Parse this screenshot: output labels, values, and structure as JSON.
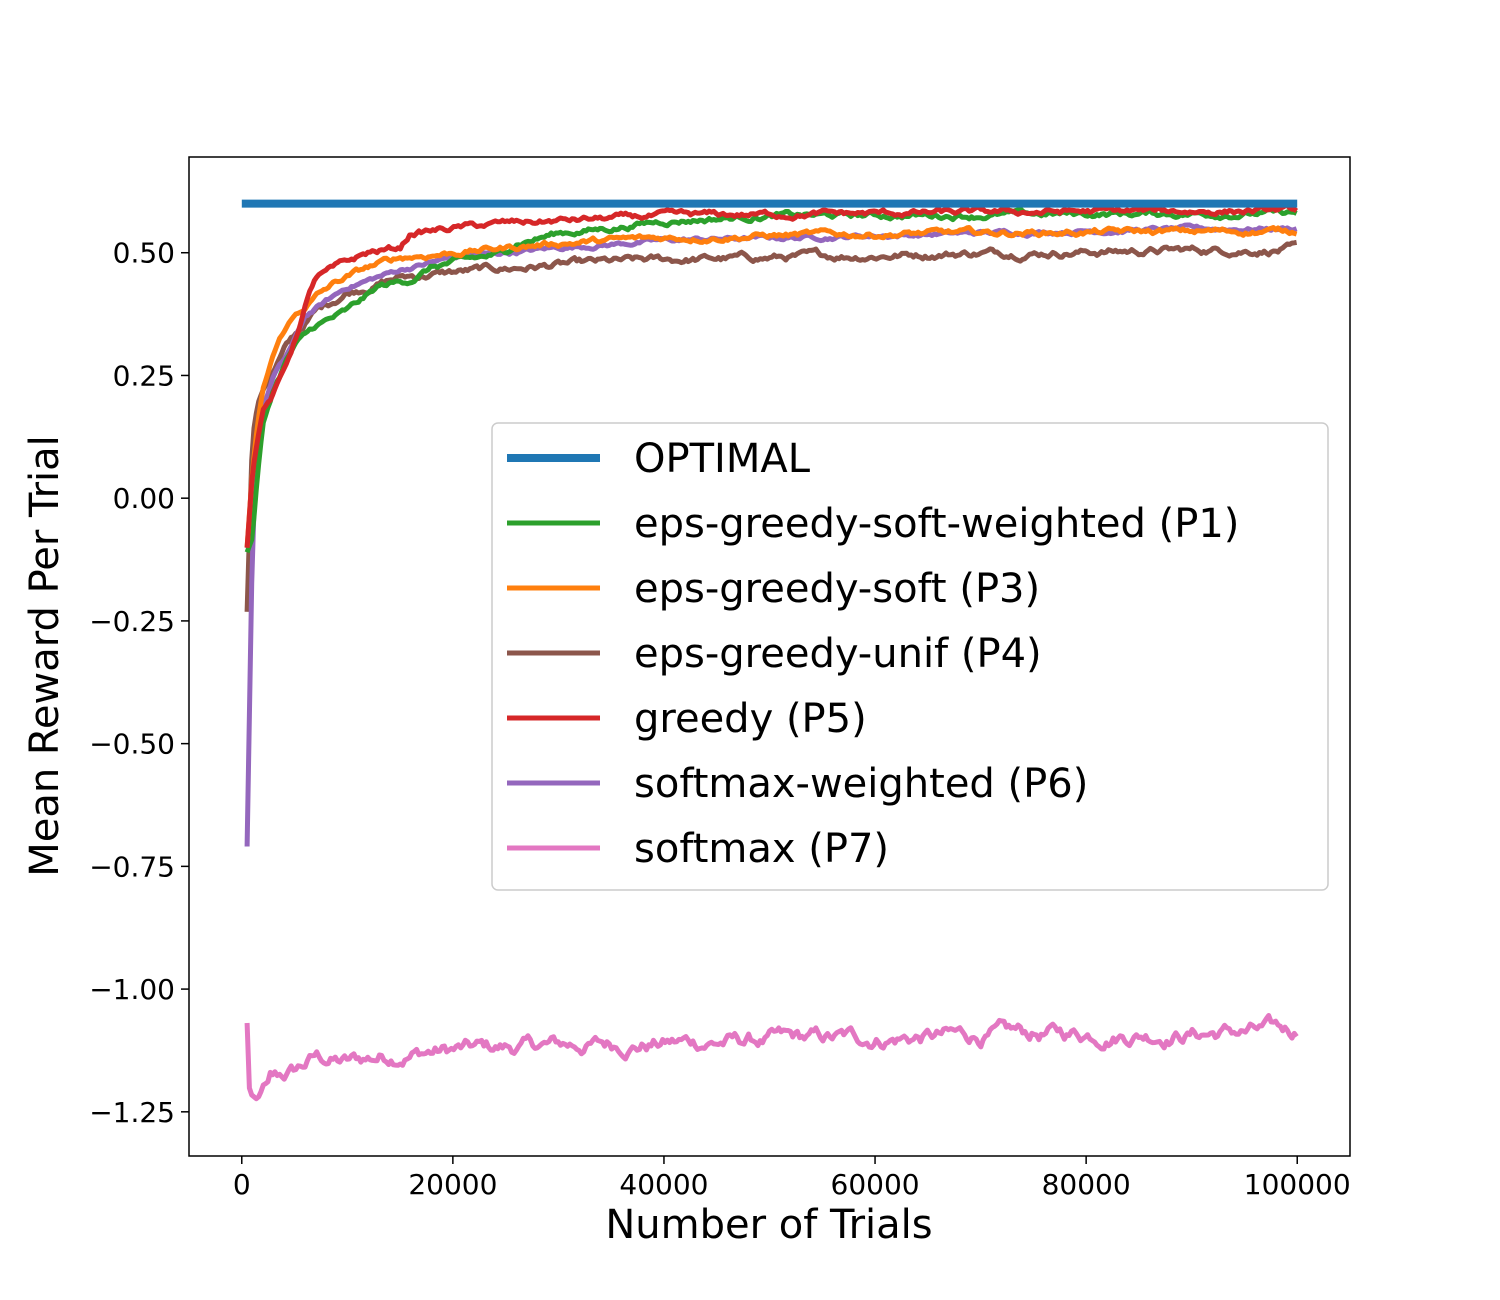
{
  "chart_data": {
    "type": "line",
    "title": "",
    "xlabel": "Number of Trials",
    "ylabel": "Mean Reward Per Trial",
    "xlim": [
      -5000,
      105000
    ],
    "ylim": [
      -1.34,
      0.695
    ],
    "x_ticks": [
      0,
      20000,
      40000,
      60000,
      80000,
      100000
    ],
    "x_tick_labels": [
      "0",
      "20000",
      "40000",
      "60000",
      "80000",
      "100000"
    ],
    "y_ticks": [
      -1.25,
      -1.0,
      -0.75,
      -0.5,
      -0.25,
      0.0,
      0.25,
      0.5
    ],
    "y_tick_labels": [
      "−1.25",
      "−1.00",
      "−0.75",
      "−0.50",
      "−0.25",
      "0.00",
      "0.25",
      "0.50"
    ],
    "grid": false,
    "legend_position": "center-right",
    "series": [
      {
        "name": "OPTIMAL",
        "color": "#1f77b4",
        "width": 8,
        "noise": 0,
        "x": [
          0,
          100000
        ],
        "y": [
          0.6,
          0.6
        ]
      },
      {
        "name": "eps-greedy-soft-weighted (P1)",
        "color": "#2ca02c",
        "width": 5,
        "noise": 0.004,
        "x": [
          500,
          1000,
          1500,
          2000,
          3000,
          4000,
          5000,
          7000,
          9000,
          10000,
          13000,
          16000,
          18000,
          20000,
          23000,
          25000,
          26000,
          28000,
          30000,
          35000,
          40000,
          45000,
          50000,
          60000,
          70000,
          80000,
          90000,
          100000
        ],
        "y": [
          -0.11,
          -0.08,
          0.05,
          0.15,
          0.22,
          0.27,
          0.31,
          0.35,
          0.37,
          0.38,
          0.43,
          0.445,
          0.47,
          0.48,
          0.49,
          0.5,
          0.52,
          0.53,
          0.54,
          0.55,
          0.565,
          0.57,
          0.575,
          0.576,
          0.577,
          0.579,
          0.58,
          0.58
        ]
      },
      {
        "name": "eps-greedy-soft (P3)",
        "color": "#ff7f0e",
        "width": 5,
        "noise": 0.004,
        "x": [
          500,
          1000,
          1500,
          2000,
          3000,
          4000,
          5000,
          6000,
          7000,
          9000,
          12000,
          15000,
          20000,
          25000,
          30000,
          40000,
          50000,
          60000,
          70000,
          80000,
          90000,
          100000
        ],
        "y": [
          -0.1,
          0.05,
          0.15,
          0.22,
          0.29,
          0.34,
          0.37,
          0.39,
          0.41,
          0.44,
          0.47,
          0.49,
          0.5,
          0.51,
          0.52,
          0.53,
          0.535,
          0.538,
          0.54,
          0.542,
          0.543,
          0.545
        ]
      },
      {
        "name": "eps-greedy-unif (P4)",
        "color": "#8c564b",
        "width": 5,
        "noise": 0.005,
        "x": [
          500,
          1000,
          1500,
          2000,
          3000,
          4000,
          5000,
          7000,
          10000,
          15000,
          20000,
          30000,
          40000,
          50000,
          60000,
          70000,
          80000,
          90000,
          100000
        ],
        "y": [
          -0.23,
          0.12,
          0.19,
          0.22,
          0.26,
          0.3,
          0.33,
          0.38,
          0.42,
          0.45,
          0.46,
          0.475,
          0.485,
          0.49,
          0.495,
          0.5,
          0.502,
          0.505,
          0.507
        ]
      },
      {
        "name": "greedy (P5)",
        "color": "#d62728",
        "width": 5,
        "noise": 0.004,
        "x": [
          500,
          1000,
          1500,
          2000,
          3000,
          4000,
          5000,
          6000,
          7000,
          9000,
          12000,
          15000,
          16000,
          20000,
          25000,
          30000,
          35000,
          40000,
          50000,
          60000,
          70000,
          80000,
          90000,
          100000
        ],
        "y": [
          -0.1,
          0.05,
          0.12,
          0.18,
          0.21,
          0.26,
          0.32,
          0.39,
          0.45,
          0.47,
          0.5,
          0.51,
          0.54,
          0.55,
          0.56,
          0.565,
          0.57,
          0.575,
          0.578,
          0.58,
          0.582,
          0.584,
          0.585,
          0.586
        ]
      },
      {
        "name": "softmax-weighted (P6)",
        "color": "#9467bd",
        "width": 5,
        "noise": 0.003,
        "x": [
          500,
          1000,
          1200,
          1500,
          2000,
          3000,
          4000,
          5000,
          6000,
          8000,
          10000,
          15000,
          20000,
          25000,
          30000,
          40000,
          50000,
          60000,
          70000,
          80000,
          90000,
          100000
        ],
        "y": [
          -0.71,
          -0.1,
          0.0,
          0.1,
          0.18,
          0.25,
          0.28,
          0.32,
          0.37,
          0.4,
          0.43,
          0.465,
          0.49,
          0.5,
          0.51,
          0.525,
          0.53,
          0.535,
          0.54,
          0.545,
          0.548,
          0.55
        ]
      },
      {
        "name": "softmax (P7)",
        "color": "#e377c2",
        "width": 5,
        "noise": 0.011,
        "x": [
          500,
          700,
          1000,
          1500,
          2000,
          3000,
          5000,
          7000,
          10000,
          15000,
          20000,
          30000,
          40000,
          50000,
          60000,
          70000,
          80000,
          90000,
          100000
        ],
        "y": [
          -1.07,
          -1.2,
          -1.22,
          -1.23,
          -1.2,
          -1.19,
          -1.17,
          -1.14,
          -1.15,
          -1.13,
          -1.125,
          -1.115,
          -1.11,
          -1.105,
          -1.1,
          -1.095,
          -1.09,
          -1.09,
          -1.085
        ]
      }
    ]
  }
}
